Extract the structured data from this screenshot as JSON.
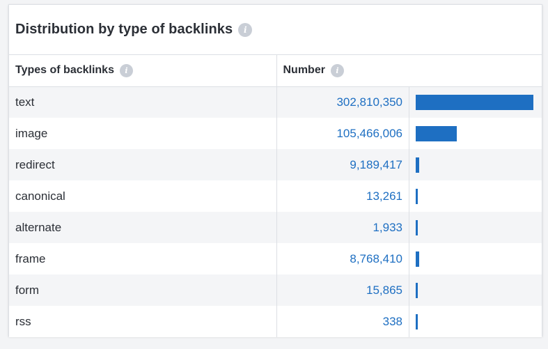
{
  "widget": {
    "title": "Distribution by type of backlinks",
    "info_icon": "info-icon",
    "accent_color": "#1e6fc2"
  },
  "table": {
    "columns": {
      "type": "Types of backlinks",
      "number": "Number"
    },
    "max_value": 302810350,
    "rows": [
      {
        "type": "text",
        "number": "302,810,350",
        "value": 302810350
      },
      {
        "type": "image",
        "number": "105,466,006",
        "value": 105466006
      },
      {
        "type": "redirect",
        "number": "9,189,417",
        "value": 9189417
      },
      {
        "type": "canonical",
        "number": "13,261",
        "value": 13261
      },
      {
        "type": "alternate",
        "number": "1,933",
        "value": 1933
      },
      {
        "type": "frame",
        "number": "8,768,410",
        "value": 8768410
      },
      {
        "type": "form",
        "number": "15,865",
        "value": 15865
      },
      {
        "type": "rss",
        "number": "338",
        "value": 338
      }
    ]
  }
}
